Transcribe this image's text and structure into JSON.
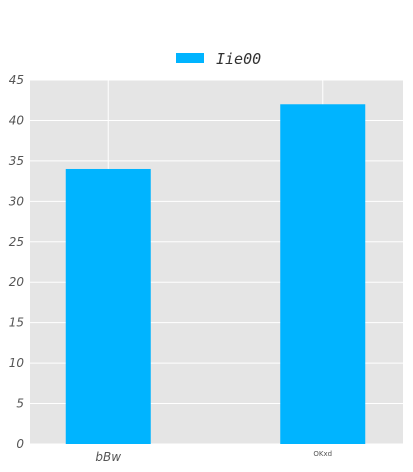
{
  "chart_data": {
    "type": "bar",
    "categories": [
      "bBw",
      "OKxd"
    ],
    "series": [
      {
        "name": "Iie00",
        "values": [
          34,
          42
        ]
      }
    ],
    "ylim": [
      0,
      45
    ],
    "yticks": [
      0,
      5,
      10,
      15,
      20,
      25,
      30,
      35,
      40,
      45
    ],
    "grid": true,
    "legend": "top-center",
    "colors": {
      "bar": "#00b4ff",
      "plot_bg": "#e5e5e5",
      "grid": "#ffffff"
    }
  }
}
